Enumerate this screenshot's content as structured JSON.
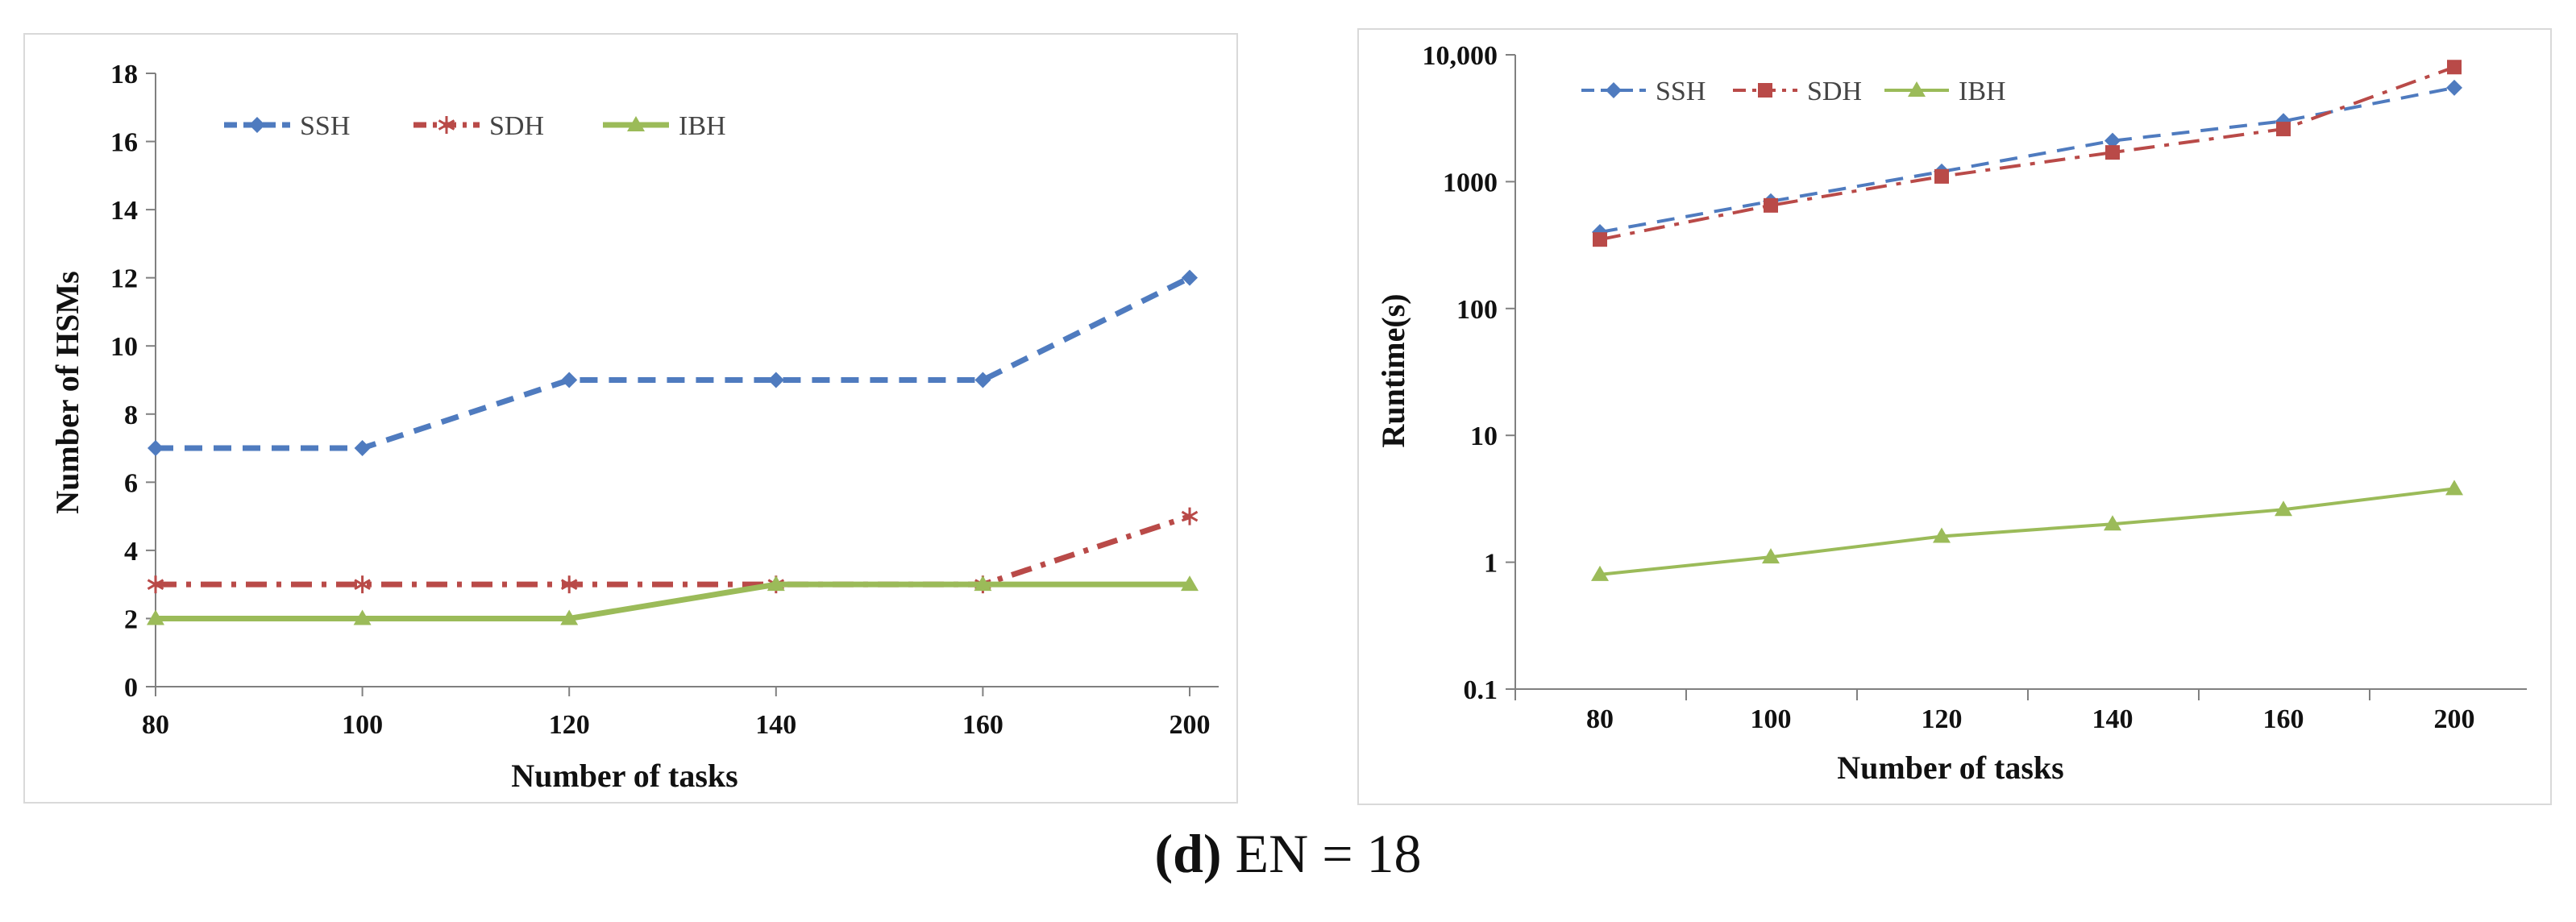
{
  "caption": {
    "label": "(d)",
    "text": "EN = 18"
  },
  "chart_data": [
    {
      "type": "line",
      "title": "",
      "xlabel": "Number of tasks",
      "ylabel": "Number of HSMs",
      "categories": [
        "80",
        "100",
        "120",
        "140",
        "160",
        "200"
      ],
      "ylim": [
        0,
        18
      ],
      "yticks": [
        0,
        2,
        4,
        6,
        8,
        10,
        12,
        14,
        16,
        18
      ],
      "ytick_labels": [
        "0",
        "2",
        "4",
        "6",
        "8",
        "10",
        "12",
        "14",
        "16",
        "18"
      ],
      "legend_position": "top-left",
      "series": [
        {
          "name": "SSH",
          "values": [
            7,
            7,
            9,
            9,
            9,
            12
          ],
          "color": "#4f7bbf",
          "marker": "diamond",
          "dash": "dashed"
        },
        {
          "name": "SDH",
          "values": [
            3,
            3,
            3,
            3,
            3,
            5
          ],
          "color": "#b94a48",
          "marker": "asterisk",
          "dash": "dash-dot"
        },
        {
          "name": "IBH",
          "values": [
            2,
            2,
            2,
            3,
            3,
            3
          ],
          "color": "#9bbb59",
          "marker": "triangle",
          "dash": "solid"
        }
      ]
    },
    {
      "type": "line",
      "title": "",
      "xlabel": "Number of tasks",
      "ylabel": "Runtime(s)",
      "yscale": "log",
      "categories": [
        "80",
        "100",
        "120",
        "140",
        "160",
        "200"
      ],
      "ylim": [
        0.1,
        10000
      ],
      "yticks": [
        0.1,
        1,
        10,
        100,
        1000,
        10000
      ],
      "ytick_labels": [
        "0.1",
        "1",
        "10",
        "100",
        "1000",
        "10,000"
      ],
      "legend_position": "top-left",
      "series": [
        {
          "name": "SSH",
          "values": [
            400,
            700,
            1200,
            2100,
            3000,
            5500
          ],
          "color": "#4f7bbf",
          "marker": "diamond",
          "dash": "dashed"
        },
        {
          "name": "SDH",
          "values": [
            350,
            650,
            1100,
            1700,
            2600,
            8000
          ],
          "color": "#b94a48",
          "marker": "square",
          "dash": "dash-dot"
        },
        {
          "name": "IBH",
          "values": [
            0.8,
            1.1,
            1.6,
            2.0,
            2.6,
            3.8
          ],
          "color": "#9bbb59",
          "marker": "triangle",
          "dash": "solid"
        }
      ]
    }
  ]
}
